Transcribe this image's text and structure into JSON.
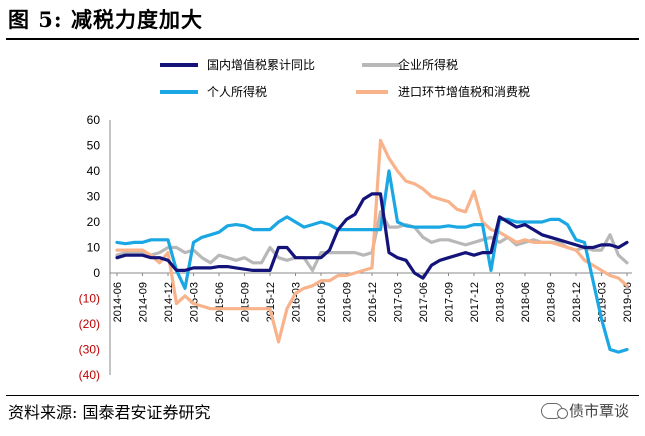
{
  "header": {
    "title": "图 5:  减税力度加大"
  },
  "footer": {
    "source": "资料来源:  国泰君安证券研究",
    "watermark": "债市覃谈"
  },
  "chart_data": {
    "type": "line",
    "ylim": [
      -40,
      60
    ],
    "yticks": [
      {
        "v": 60,
        "label": "60"
      },
      {
        "v": 50,
        "label": "50"
      },
      {
        "v": 40,
        "label": "40"
      },
      {
        "v": 30,
        "label": "30"
      },
      {
        "v": 20,
        "label": "20"
      },
      {
        "v": 10,
        "label": "10"
      },
      {
        "v": 0,
        "label": "0"
      },
      {
        "v": -10,
        "label": "(10)"
      },
      {
        "v": -20,
        "label": "(20)"
      },
      {
        "v": -30,
        "label": "(30)"
      },
      {
        "v": -40,
        "label": "(40)"
      }
    ],
    "x": [
      "2014-06",
      "2014-07",
      "2014-08",
      "2014-09",
      "2014-10",
      "2014-11",
      "2014-12",
      "2015-01",
      "2015-02",
      "2015-03",
      "2015-04",
      "2015-05",
      "2015-06",
      "2015-07",
      "2015-08",
      "2015-09",
      "2015-10",
      "2015-11",
      "2015-12",
      "2016-01",
      "2016-02",
      "2016-03",
      "2016-04",
      "2016-05",
      "2016-06",
      "2016-07",
      "2016-08",
      "2016-09",
      "2016-10",
      "2016-11",
      "2016-12",
      "2017-01",
      "2017-02",
      "2017-03",
      "2017-04",
      "2017-05",
      "2017-06",
      "2017-07",
      "2017-08",
      "2017-09",
      "2017-10",
      "2017-11",
      "2017-12",
      "2018-01",
      "2018-02",
      "2018-03",
      "2018-04",
      "2018-05",
      "2018-06",
      "2018-07",
      "2018-08",
      "2018-09",
      "2018-10",
      "2018-11",
      "2018-12",
      "2019-01",
      "2019-02",
      "2019-03",
      "2019-04",
      "2019-05",
      "2019-06"
    ],
    "xticks": [
      "2014-06",
      "2014-09",
      "2014-12",
      "2015-03",
      "2015-06",
      "2015-09",
      "2015-12",
      "2016-03",
      "2016-06",
      "2016-09",
      "2016-12",
      "2017-03",
      "2017-06",
      "2017-09",
      "2017-12",
      "2018-03",
      "2018-06",
      "2018-09",
      "2018-12",
      "2019-03",
      "2019-06"
    ],
    "series": [
      {
        "name": "国内增值税累计同比",
        "color": "#13137a",
        "width": 3.2,
        "values": [
          6,
          7,
          7,
          7,
          6,
          6,
          5,
          1,
          1,
          2,
          2,
          2,
          2.5,
          2.5,
          2,
          1.5,
          1,
          1,
          1,
          10,
          10,
          6,
          6,
          6,
          6,
          9,
          17,
          21,
          23,
          29,
          31,
          31,
          8,
          6,
          5,
          0,
          -2,
          3,
          5,
          6,
          7,
          8,
          7,
          8,
          8,
          22,
          20,
          18,
          19,
          17,
          15,
          14,
          13,
          12,
          11,
          10,
          10,
          11,
          11,
          10,
          12
        ]
      },
      {
        "name": "企业所得税",
        "color": "#b8b8b8",
        "width": 3.2,
        "values": [
          7,
          8,
          8,
          8,
          7,
          8,
          10,
          10,
          8,
          9,
          6,
          4,
          7,
          6,
          5,
          6,
          4,
          4,
          10,
          6,
          5,
          6,
          6,
          1,
          8,
          8,
          8,
          8,
          8,
          7,
          8,
          24,
          18,
          18,
          19,
          18,
          14,
          12,
          13,
          13,
          12,
          11,
          12,
          13,
          14,
          12,
          14,
          11,
          12,
          13,
          12,
          12,
          12,
          10,
          9,
          10,
          9,
          9,
          15,
          7,
          4
        ]
      },
      {
        "name": "个人所得税",
        "color": "#1aa7e3",
        "width": 3.2,
        "values": [
          12,
          11.5,
          12,
          12,
          13,
          13,
          13,
          1,
          -6,
          12,
          14,
          15,
          16,
          18.5,
          19,
          18.5,
          17,
          17,
          17,
          20,
          22,
          20,
          18,
          19,
          20,
          19,
          17,
          17,
          17,
          17,
          17,
          17,
          40,
          20,
          18.5,
          18,
          18,
          18,
          18,
          18.5,
          18,
          18,
          19,
          19,
          1,
          21,
          21,
          20,
          20,
          20,
          20,
          21,
          21,
          19,
          13,
          12,
          -3,
          -18,
          -30,
          -31,
          -30
        ]
      },
      {
        "name": "进口环节增值税和消费税",
        "color": "#f8b38a",
        "width": 3.2,
        "values": [
          9,
          9,
          9,
          9,
          7,
          4,
          8,
          -12,
          -9,
          -12,
          -13,
          -14,
          -14,
          -14,
          -14,
          -14,
          -14,
          -14,
          -14,
          -27,
          -14,
          -8,
          -6,
          -5,
          -3,
          -3,
          -1,
          -1,
          0,
          1,
          2,
          52,
          45,
          40,
          36,
          35,
          33,
          30,
          29,
          28,
          25,
          24,
          32,
          20,
          17,
          16,
          14,
          12,
          13,
          12,
          12,
          12,
          11,
          10,
          9,
          5,
          3,
          1,
          -1,
          -2,
          -5
        ]
      }
    ]
  }
}
